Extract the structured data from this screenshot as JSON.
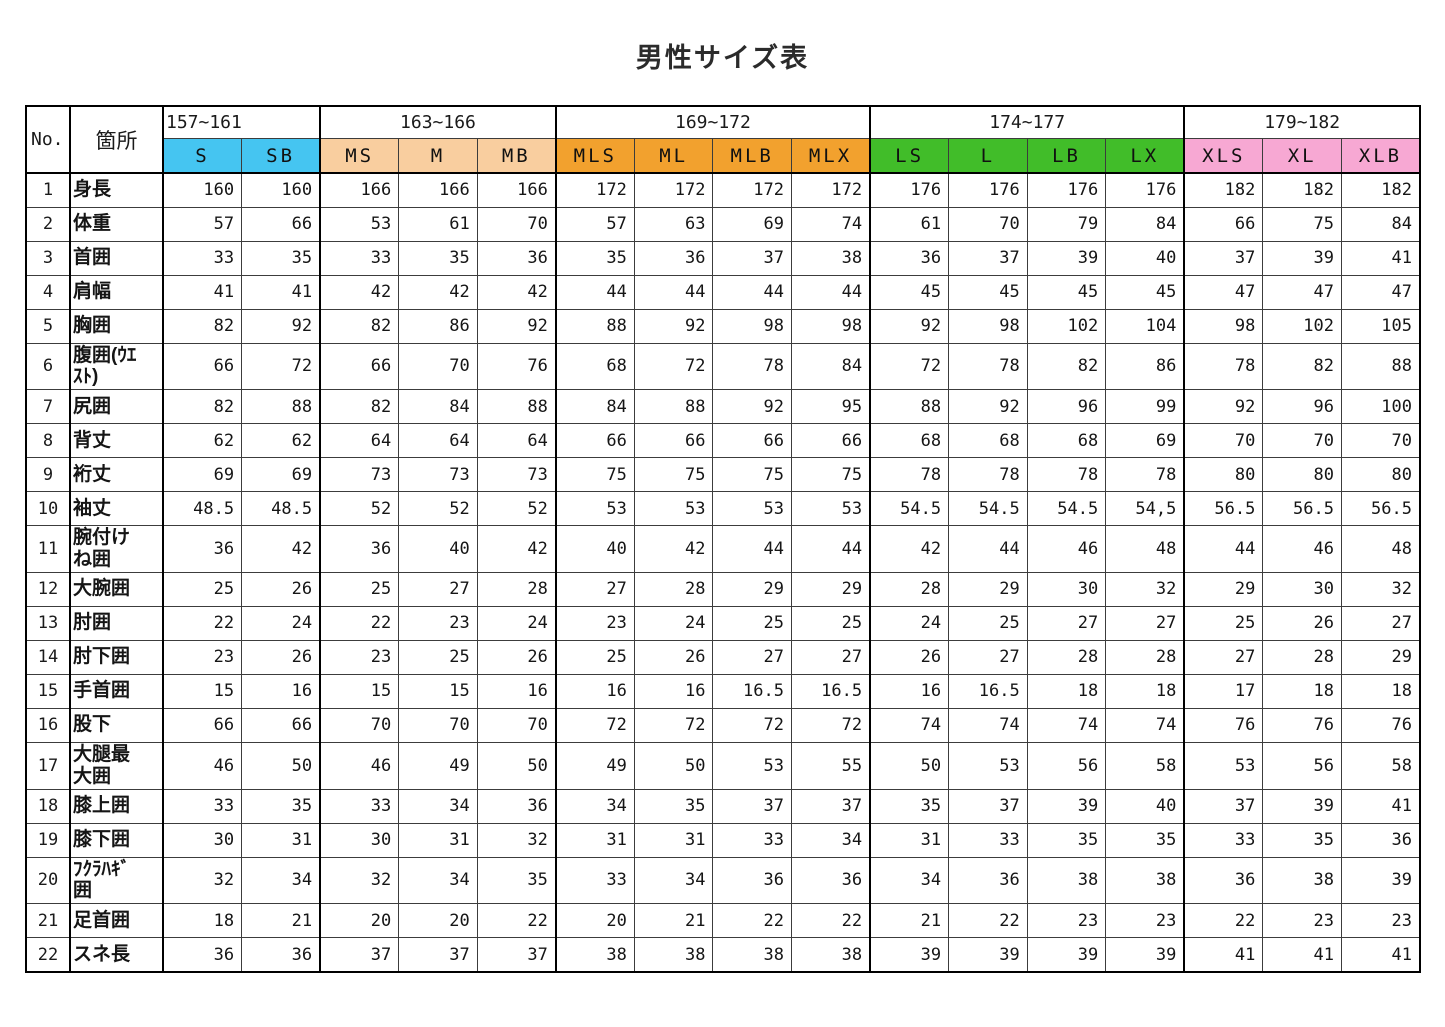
{
  "title": "男性サイズ表",
  "table": {
    "corner": {
      "no": "No.",
      "location": "箇所"
    },
    "groups": [
      {
        "range": "157~161",
        "color": "#45C5F1",
        "sizes": [
          "S",
          "SB"
        ]
      },
      {
        "range": "163~166",
        "color": "#F9CE9F",
        "sizes": [
          "MS",
          "M",
          "MB"
        ]
      },
      {
        "range": "169~172",
        "color": "#F2A12E",
        "sizes": [
          "MLS",
          "ML",
          "MLB",
          "MLX"
        ]
      },
      {
        "range": "174~177",
        "color": "#41BD29",
        "sizes": [
          "LS",
          "L",
          "LB",
          "LX"
        ]
      },
      {
        "range": "179~182",
        "color": "#F7A8D3",
        "sizes": [
          "XLS",
          "XL",
          "XLB"
        ]
      }
    ],
    "rows": [
      {
        "no": "1",
        "label": "身長",
        "values": [
          "160",
          "160",
          "166",
          "166",
          "166",
          "172",
          "172",
          "172",
          "172",
          "176",
          "176",
          "176",
          "176",
          "182",
          "182",
          "182"
        ]
      },
      {
        "no": "2",
        "label": "体重",
        "values": [
          "57",
          "66",
          "53",
          "61",
          "70",
          "57",
          "63",
          "69",
          "74",
          "61",
          "70",
          "79",
          "84",
          "66",
          "75",
          "84"
        ]
      },
      {
        "no": "3",
        "label": "首囲",
        "values": [
          "33",
          "35",
          "33",
          "35",
          "36",
          "35",
          "36",
          "37",
          "38",
          "36",
          "37",
          "39",
          "40",
          "37",
          "39",
          "41"
        ]
      },
      {
        "no": "4",
        "label": "肩幅",
        "values": [
          "41",
          "41",
          "42",
          "42",
          "42",
          "44",
          "44",
          "44",
          "44",
          "45",
          "45",
          "45",
          "45",
          "47",
          "47",
          "47"
        ]
      },
      {
        "no": "5",
        "label": "胸囲",
        "values": [
          "82",
          "92",
          "82",
          "86",
          "92",
          "88",
          "92",
          "98",
          "98",
          "92",
          "98",
          "102",
          "104",
          "98",
          "102",
          "105"
        ]
      },
      {
        "no": "6",
        "label": "腹囲(ｳｴ\nｽﾄ)",
        "values": [
          "66",
          "72",
          "66",
          "70",
          "76",
          "68",
          "72",
          "78",
          "84",
          "72",
          "78",
          "82",
          "86",
          "78",
          "82",
          "88"
        ]
      },
      {
        "no": "7",
        "label": "尻囲",
        "values": [
          "82",
          "88",
          "82",
          "84",
          "88",
          "84",
          "88",
          "92",
          "95",
          "88",
          "92",
          "96",
          "99",
          "92",
          "96",
          "100"
        ]
      },
      {
        "no": "8",
        "label": "背丈",
        "values": [
          "62",
          "62",
          "64",
          "64",
          "64",
          "66",
          "66",
          "66",
          "66",
          "68",
          "68",
          "68",
          "69",
          "70",
          "70",
          "70"
        ]
      },
      {
        "no": "9",
        "label": "裄丈",
        "values": [
          "69",
          "69",
          "73",
          "73",
          "73",
          "75",
          "75",
          "75",
          "75",
          "78",
          "78",
          "78",
          "78",
          "80",
          "80",
          "80"
        ]
      },
      {
        "no": "10",
        "label": "袖丈",
        "values": [
          "48.5",
          "48.5",
          "52",
          "52",
          "52",
          "53",
          "53",
          "53",
          "53",
          "54.5",
          "54.5",
          "54.5",
          "54,5",
          "56.5",
          "56.5",
          "56.5"
        ]
      },
      {
        "no": "11",
        "label": "腕付け\nね囲",
        "values": [
          "36",
          "42",
          "36",
          "40",
          "42",
          "40",
          "42",
          "44",
          "44",
          "42",
          "44",
          "46",
          "48",
          "44",
          "46",
          "48"
        ]
      },
      {
        "no": "12",
        "label": "大腕囲",
        "values": [
          "25",
          "26",
          "25",
          "27",
          "28",
          "27",
          "28",
          "29",
          "29",
          "28",
          "29",
          "30",
          "32",
          "29",
          "30",
          "32"
        ]
      },
      {
        "no": "13",
        "label": "肘囲",
        "values": [
          "22",
          "24",
          "22",
          "23",
          "24",
          "23",
          "24",
          "25",
          "25",
          "24",
          "25",
          "27",
          "27",
          "25",
          "26",
          "27"
        ]
      },
      {
        "no": "14",
        "label": "肘下囲",
        "values": [
          "23",
          "26",
          "23",
          "25",
          "26",
          "25",
          "26",
          "27",
          "27",
          "26",
          "27",
          "28",
          "28",
          "27",
          "28",
          "29"
        ]
      },
      {
        "no": "15",
        "label": "手首囲",
        "values": [
          "15",
          "16",
          "15",
          "15",
          "16",
          "16",
          "16",
          "16.5",
          "16.5",
          "16",
          "16.5",
          "18",
          "18",
          "17",
          "18",
          "18"
        ]
      },
      {
        "no": "16",
        "label": "股下",
        "values": [
          "66",
          "66",
          "70",
          "70",
          "70",
          "72",
          "72",
          "72",
          "72",
          "74",
          "74",
          "74",
          "74",
          "76",
          "76",
          "76"
        ]
      },
      {
        "no": "17",
        "label": "大腿最\n大囲",
        "values": [
          "46",
          "50",
          "46",
          "49",
          "50",
          "49",
          "50",
          "53",
          "55",
          "50",
          "53",
          "56",
          "58",
          "53",
          "56",
          "58"
        ]
      },
      {
        "no": "18",
        "label": "膝上囲",
        "values": [
          "33",
          "35",
          "33",
          "34",
          "36",
          "34",
          "35",
          "37",
          "37",
          "35",
          "37",
          "39",
          "40",
          "37",
          "39",
          "41"
        ]
      },
      {
        "no": "19",
        "label": "膝下囲",
        "values": [
          "30",
          "31",
          "30",
          "31",
          "32",
          "31",
          "31",
          "33",
          "34",
          "31",
          "33",
          "35",
          "35",
          "33",
          "35",
          "36"
        ]
      },
      {
        "no": "20",
        "label": "ﾌｸﾗﾊｷﾞ\n囲",
        "values": [
          "32",
          "34",
          "32",
          "34",
          "35",
          "33",
          "34",
          "36",
          "36",
          "34",
          "36",
          "38",
          "38",
          "36",
          "38",
          "39"
        ]
      },
      {
        "no": "21",
        "label": "足首囲",
        "values": [
          "18",
          "21",
          "20",
          "20",
          "22",
          "20",
          "21",
          "22",
          "22",
          "21",
          "22",
          "23",
          "23",
          "22",
          "23",
          "23"
        ]
      },
      {
        "no": "22",
        "label": "スネ長",
        "values": [
          "36",
          "36",
          "37",
          "37",
          "37",
          "38",
          "38",
          "38",
          "38",
          "39",
          "39",
          "39",
          "39",
          "41",
          "41",
          "41"
        ]
      }
    ]
  }
}
